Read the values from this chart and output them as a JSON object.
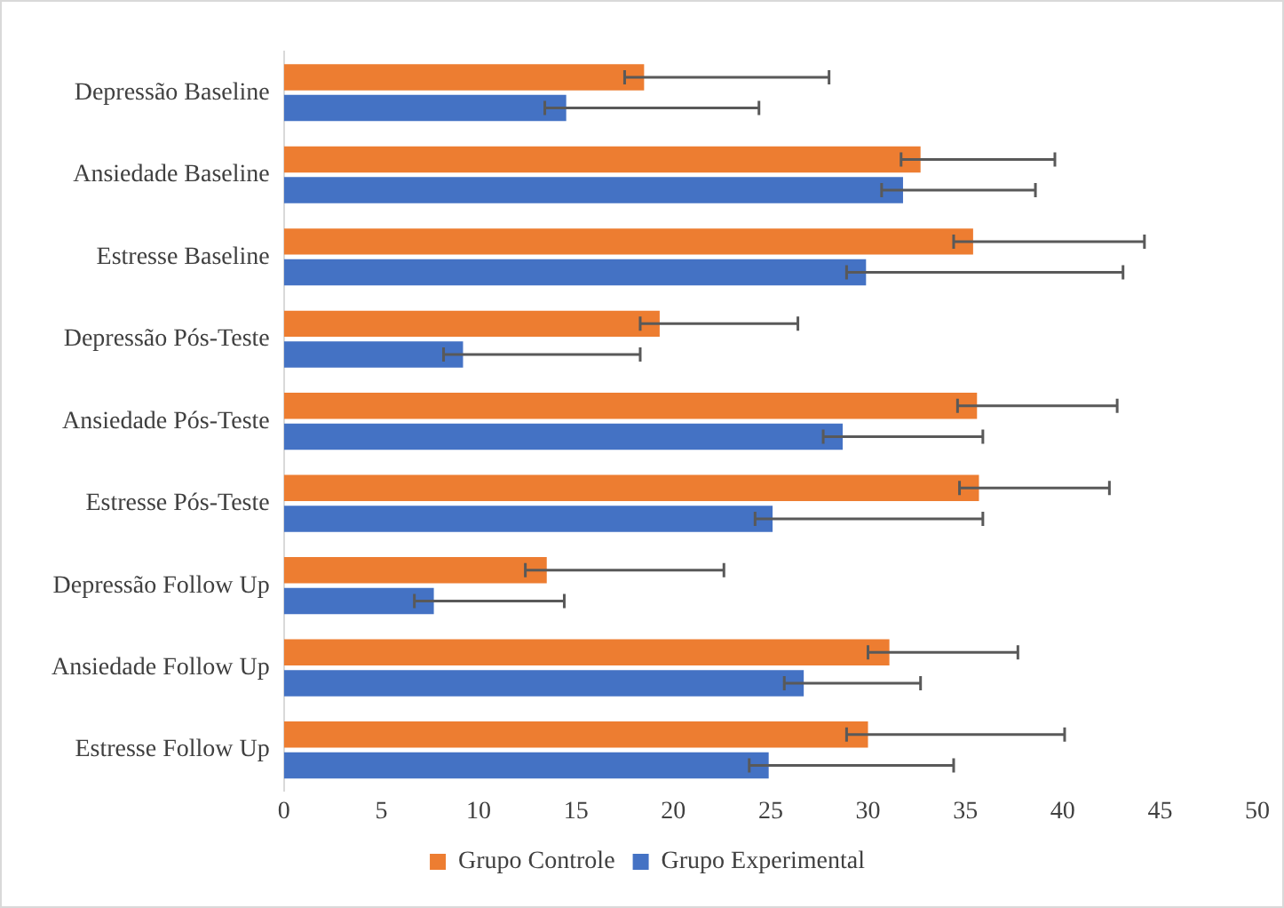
{
  "chart_data": {
    "type": "bar",
    "orientation": "horizontal",
    "categories": [
      "Depressão Baseline",
      "Ansiedade Baseline",
      "Estresse Baseline",
      "Depressão Pós-Teste",
      "Ansiedade Pós-Teste",
      "Estresse Pós-Teste",
      "Depressão Follow Up",
      "Ansiedade Follow Up",
      "Estresse Follow Up"
    ],
    "series": [
      {
        "name": "Grupo Controle",
        "color": "#ed7d31",
        "values": [
          18.5,
          32.7,
          35.4,
          19.3,
          35.6,
          35.7,
          13.5,
          31.1,
          30.0
        ],
        "errors": [
          [
            17.5,
            28.0
          ],
          [
            31.7,
            39.6
          ],
          [
            34.4,
            44.2
          ],
          [
            18.3,
            26.4
          ],
          [
            34.6,
            42.8
          ],
          [
            34.7,
            42.4
          ],
          [
            12.4,
            22.6
          ],
          [
            30.0,
            37.7
          ],
          [
            28.9,
            40.1
          ]
        ]
      },
      {
        "name": "Grupo Experimental",
        "color": "#4472c4",
        "values": [
          14.5,
          31.8,
          29.9,
          9.2,
          28.7,
          25.1,
          7.7,
          26.7,
          24.9
        ],
        "errors": [
          [
            13.4,
            24.4
          ],
          [
            30.7,
            38.6
          ],
          [
            28.9,
            43.1
          ],
          [
            8.2,
            18.3
          ],
          [
            27.7,
            35.9
          ],
          [
            24.2,
            35.9
          ],
          [
            6.7,
            14.4
          ],
          [
            25.7,
            32.7
          ],
          [
            23.9,
            34.4
          ]
        ]
      }
    ],
    "xlim": [
      0,
      50
    ],
    "xticks": [
      0,
      5,
      10,
      15,
      20,
      25,
      30,
      35,
      40,
      45,
      50
    ],
    "grid": false,
    "legend": "bottom"
  }
}
